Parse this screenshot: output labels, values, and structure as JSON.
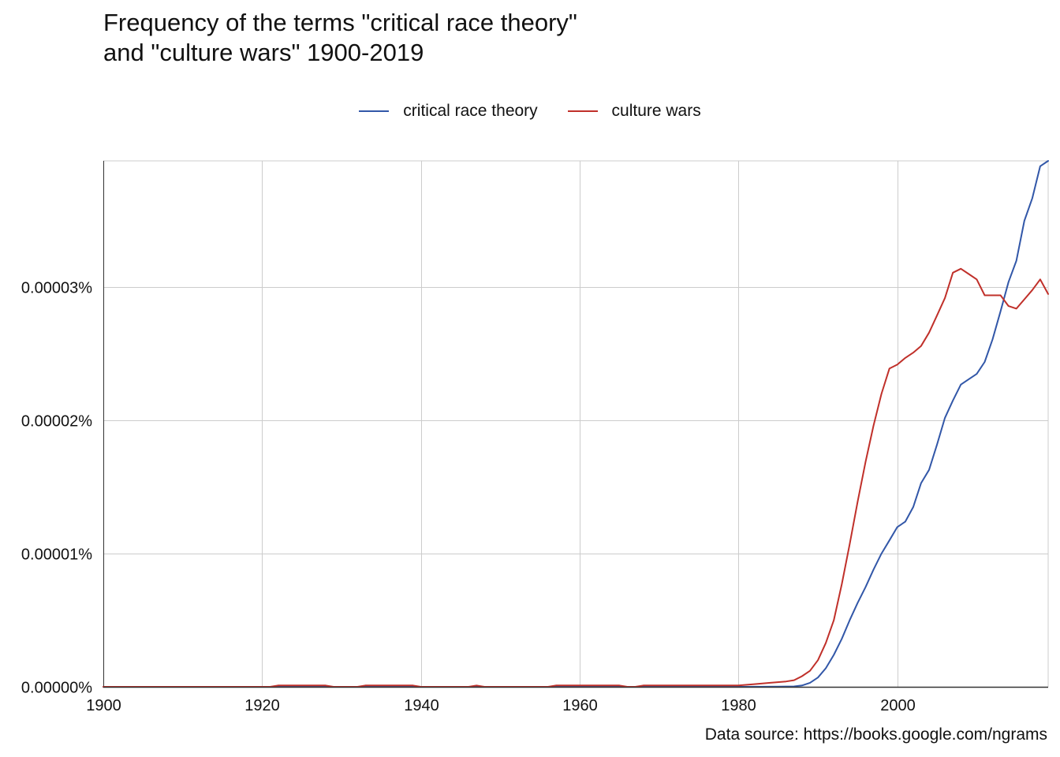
{
  "title_lines": [
    "Frequency of the terms \"critical race theory\"",
    "and \"culture wars\" 1900-2019"
  ],
  "source": "Data source: https://books.google.com/ngrams",
  "colors": {
    "critical race theory": "#3257a8",
    "culture wars": "#c0302a",
    "grid": "#cccccc",
    "axis": "#333333"
  },
  "chart_data": {
    "type": "line",
    "title": "Frequency of the terms \"critical race theory\" and \"culture wars\" 1900-2019",
    "xlabel": "",
    "ylabel": "",
    "xlim": [
      1900,
      2019
    ],
    "ylim": [
      0,
      3.95e-05
    ],
    "x_ticks": [
      1900,
      1920,
      1940,
      1960,
      1980,
      2000
    ],
    "x_tick_labels": [
      "1900",
      "1920",
      "1940",
      "1960",
      "1980",
      "2000"
    ],
    "y_ticks": [
      0,
      1e-05,
      2e-05,
      3e-05
    ],
    "y_tick_labels": [
      "0.00000%",
      "0.00001%",
      "0.00002%",
      "0.00003%"
    ],
    "grid": true,
    "legend_position": "top-center",
    "series": [
      {
        "name": "critical race theory",
        "points": [
          [
            1900,
            0
          ],
          [
            1980,
            0
          ],
          [
            1985,
            1e-08
          ],
          [
            1987,
            3e-08
          ],
          [
            1988,
            1e-07
          ],
          [
            1989,
            3e-07
          ],
          [
            1990,
            7e-07
          ],
          [
            1991,
            1.4e-06
          ],
          [
            1992,
            2.4e-06
          ],
          [
            1993,
            3.6e-06
          ],
          [
            1994,
            5e-06
          ],
          [
            1995,
            6.3e-06
          ],
          [
            1996,
            7.5e-06
          ],
          [
            1997,
            8.8e-06
          ],
          [
            1998,
            1e-05
          ],
          [
            1999,
            1.1e-05
          ],
          [
            2000,
            1.2e-05
          ],
          [
            2001,
            1.24e-05
          ],
          [
            2002,
            1.35e-05
          ],
          [
            2003,
            1.53e-05
          ],
          [
            2004,
            1.63e-05
          ],
          [
            2005,
            1.82e-05
          ],
          [
            2006,
            2.02e-05
          ],
          [
            2007,
            2.15e-05
          ],
          [
            2008,
            2.27e-05
          ],
          [
            2009,
            2.31e-05
          ],
          [
            2010,
            2.35e-05
          ],
          [
            2011,
            2.44e-05
          ],
          [
            2012,
            2.61e-05
          ],
          [
            2013,
            2.82e-05
          ],
          [
            2014,
            3.04e-05
          ],
          [
            2015,
            3.2e-05
          ],
          [
            2016,
            3.5e-05
          ],
          [
            2017,
            3.67e-05
          ],
          [
            2018,
            3.91e-05
          ],
          [
            2019,
            3.95e-05
          ]
        ]
      },
      {
        "name": "culture wars",
        "points": [
          [
            1900,
            0
          ],
          [
            1921,
            0
          ],
          [
            1922,
            1e-07
          ],
          [
            1928,
            1e-07
          ],
          [
            1929,
            0
          ],
          [
            1932,
            0
          ],
          [
            1933,
            1e-07
          ],
          [
            1939,
            1e-07
          ],
          [
            1940,
            0
          ],
          [
            1946,
            0
          ],
          [
            1947,
            1e-07
          ],
          [
            1948,
            0
          ],
          [
            1956,
            0
          ],
          [
            1957,
            1e-07
          ],
          [
            1965,
            1e-07
          ],
          [
            1966,
            0
          ],
          [
            1967,
            0
          ],
          [
            1968,
            1e-07
          ],
          [
            1980,
            1e-07
          ],
          [
            1982,
            2e-07
          ],
          [
            1984,
            3e-07
          ],
          [
            1986,
            4e-07
          ],
          [
            1987,
            5e-07
          ],
          [
            1988,
            8e-07
          ],
          [
            1989,
            1.2e-06
          ],
          [
            1990,
            2e-06
          ],
          [
            1991,
            3.3e-06
          ],
          [
            1992,
            5e-06
          ],
          [
            1993,
            7.7e-06
          ],
          [
            1994,
            1.07e-05
          ],
          [
            1995,
            1.39e-05
          ],
          [
            1996,
            1.69e-05
          ],
          [
            1997,
            1.96e-05
          ],
          [
            1998,
            2.2e-05
          ],
          [
            1999,
            2.39e-05
          ],
          [
            2000,
            2.42e-05
          ],
          [
            2001,
            2.47e-05
          ],
          [
            2002,
            2.51e-05
          ],
          [
            2003,
            2.56e-05
          ],
          [
            2004,
            2.66e-05
          ],
          [
            2005,
            2.79e-05
          ],
          [
            2006,
            2.92e-05
          ],
          [
            2007,
            3.11e-05
          ],
          [
            2008,
            3.14e-05
          ],
          [
            2009,
            3.1e-05
          ],
          [
            2010,
            3.06e-05
          ],
          [
            2011,
            2.94e-05
          ],
          [
            2012,
            2.94e-05
          ],
          [
            2013,
            2.94e-05
          ],
          [
            2014,
            2.86e-05
          ],
          [
            2015,
            2.84e-05
          ],
          [
            2016,
            2.91e-05
          ],
          [
            2017,
            2.98e-05
          ],
          [
            2018,
            3.06e-05
          ],
          [
            2019,
            2.95e-05
          ]
        ]
      }
    ]
  }
}
